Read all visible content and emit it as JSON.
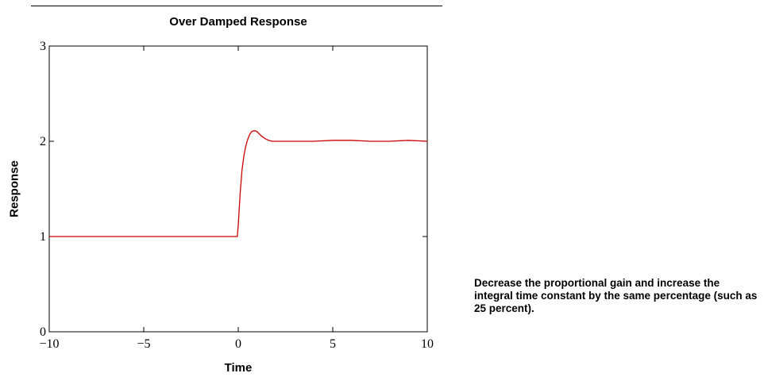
{
  "chart_data": {
    "type": "line",
    "title": "Over Damped Response",
    "xlabel": "Time",
    "ylabel": "Response",
    "xlim": [
      -10,
      10
    ],
    "ylim": [
      0,
      3
    ],
    "x_ticks": [
      -10,
      -5,
      0,
      5,
      10
    ],
    "x_tick_labels": [
      "−10",
      "−5",
      "0",
      "5",
      "10"
    ],
    "y_ticks": [
      0,
      1,
      2,
      3
    ],
    "y_tick_labels": [
      "0",
      "1",
      "2",
      "3"
    ],
    "grid": false,
    "legend": "none",
    "series": [
      {
        "color": "#cc0000",
        "x": [
          -10,
          -0.05,
          0,
          0.1,
          0.2,
          0.3,
          0.4,
          0.5,
          0.6,
          0.7,
          0.8,
          0.9,
          1.0,
          1.1,
          1.2,
          1.4,
          1.6,
          1.8,
          2.0,
          2.5,
          3,
          4,
          5,
          6,
          7,
          8,
          9,
          10
        ],
        "y": [
          1,
          1,
          1.12,
          1.45,
          1.7,
          1.85,
          1.95,
          2.02,
          2.07,
          2.1,
          2.11,
          2.11,
          2.1,
          2.08,
          2.06,
          2.03,
          2.01,
          2.0,
          2.0,
          2.0,
          2.0,
          2.0,
          2.01,
          2.01,
          2.0,
          2.0,
          2.01,
          2.0
        ]
      }
    ]
  },
  "note": "Decrease the proportional gain and increase the integral time constant by the same percentage (such as 25 percent)."
}
